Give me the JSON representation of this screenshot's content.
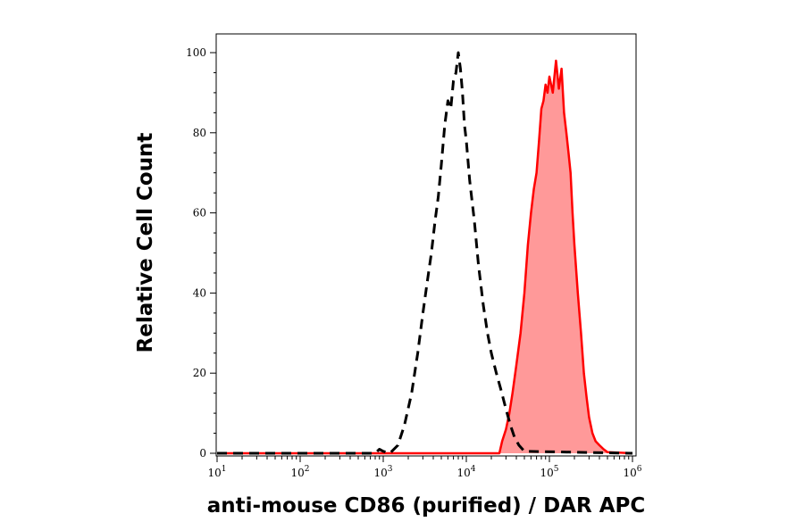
{
  "chart_data": {
    "type": "area",
    "title": "",
    "xlabel": "anti-mouse CD86 (purified) / DAR APC",
    "ylabel": "Relative Cell Count",
    "xscale": "log",
    "xlim": [
      10,
      1000000
    ],
    "ylim": [
      0,
      100
    ],
    "grid": false,
    "legend": "none",
    "x_ticks": [
      {
        "value": 10,
        "base": "10",
        "exp": "1"
      },
      {
        "value": 100,
        "base": "10",
        "exp": "2"
      },
      {
        "value": 1000,
        "base": "10",
        "exp": "3"
      },
      {
        "value": 10000,
        "base": "10",
        "exp": "4"
      },
      {
        "value": 100000,
        "base": "10",
        "exp": "5"
      },
      {
        "value": 1000000,
        "base": "10",
        "exp": "6"
      }
    ],
    "y_ticks": [
      "0",
      "20",
      "40",
      "60",
      "80",
      "100"
    ],
    "series": [
      {
        "style": "dashed",
        "color": "#000000",
        "fill": "none",
        "x": [
          10,
          800,
          900,
          1000,
          1200,
          1500,
          1800,
          2200,
          2600,
          3000,
          3400,
          3800,
          4200,
          4600,
          5000,
          5500,
          6000,
          6500,
          7000,
          7500,
          8000,
          8500,
          9000,
          9500,
          10000,
          11000,
          12500,
          14000,
          16000,
          18000,
          20000,
          23000,
          26000,
          30000,
          34000,
          38000,
          43000,
          50000,
          1000000
        ],
        "y": [
          0,
          0,
          1,
          0.5,
          0,
          2,
          7,
          15,
          25,
          35,
          43,
          50,
          58,
          64,
          72,
          82,
          88,
          86,
          93,
          95,
          100,
          96,
          90,
          82,
          78,
          68,
          58,
          47,
          37,
          30,
          25,
          20,
          16,
          11,
          7,
          4,
          2,
          0.5,
          0
        ]
      },
      {
        "style": "solid",
        "color": "#ff0000",
        "fill": "#ff9999",
        "x": [
          10,
          25000,
          27000,
          30000,
          33000,
          36000,
          40000,
          45000,
          50000,
          55000,
          60000,
          65000,
          70000,
          75000,
          80000,
          85000,
          90000,
          95000,
          100000,
          110000,
          120000,
          130000,
          140000,
          150000,
          160000,
          170000,
          180000,
          190000,
          200000,
          220000,
          240000,
          260000,
          280000,
          300000,
          330000,
          360000,
          400000,
          450000,
          500000,
          1000000
        ],
        "y": [
          0,
          0,
          3,
          6,
          10,
          15,
          22,
          30,
          40,
          52,
          60,
          66,
          70,
          78,
          86,
          88,
          92,
          90,
          94,
          90,
          98,
          91,
          96,
          85,
          80,
          75,
          70,
          60,
          52,
          40,
          30,
          20,
          14,
          9,
          5,
          3,
          2,
          1,
          0.3,
          0
        ]
      }
    ]
  }
}
